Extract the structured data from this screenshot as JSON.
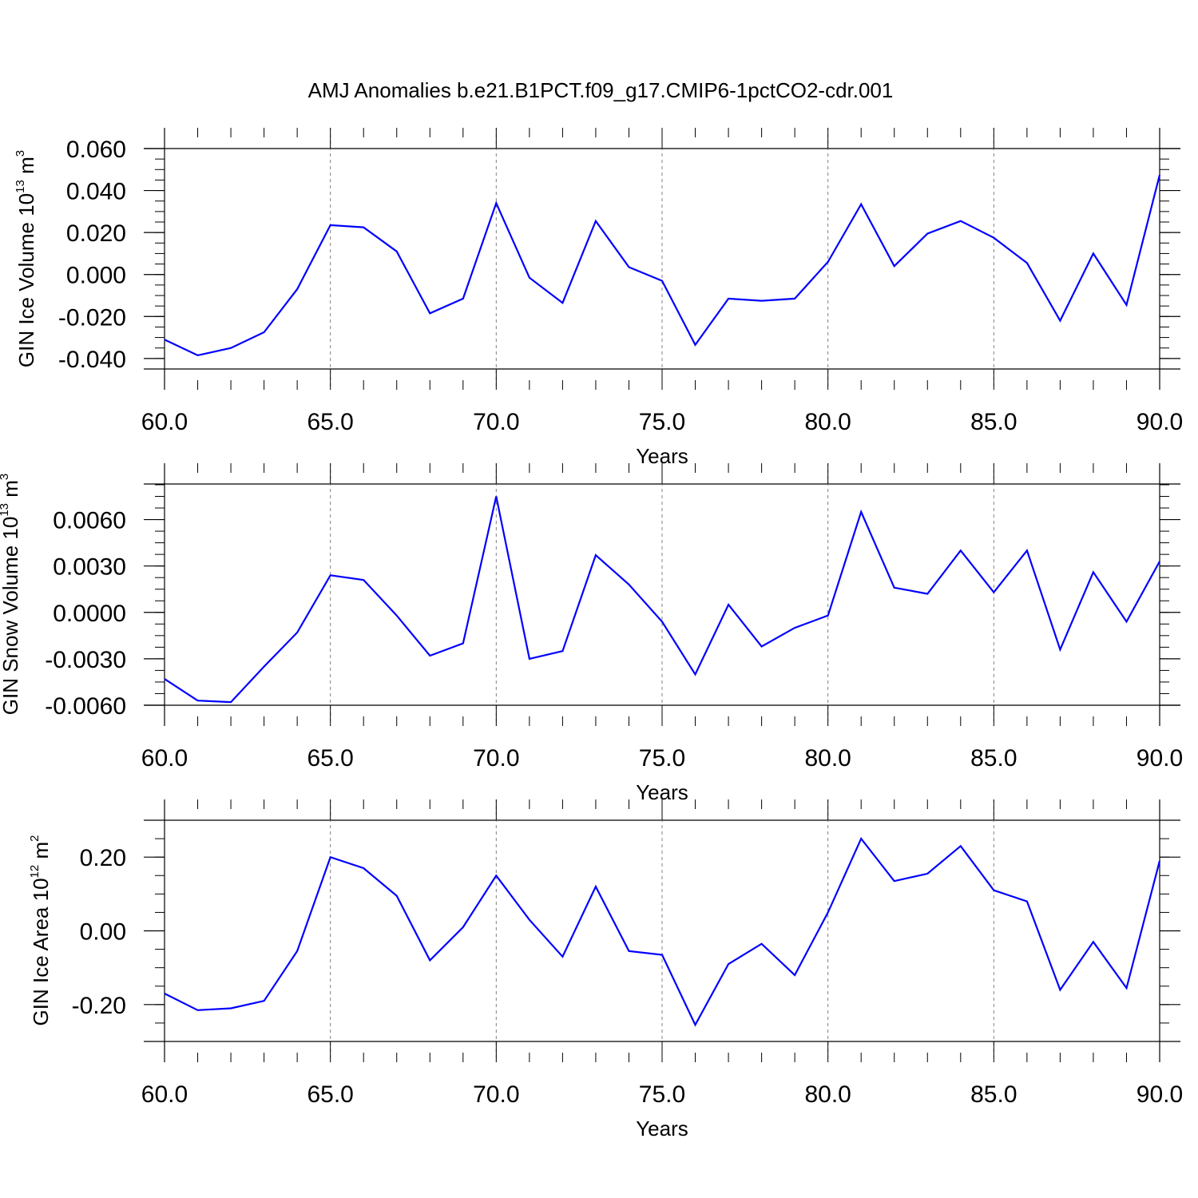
{
  "title": "AMJ Anomalies b.e21.B1PCT.f09_g17.CMIP6-1pctCO2-cdr.001",
  "colors": {
    "line": "#0000ff",
    "axis": "#000000",
    "grid": "#808080"
  },
  "chart_data": [
    {
      "type": "line",
      "xlabel": "Years",
      "ylabel": {
        "text": "GIN Ice Volume 10",
        "sup": "13",
        "unit": " m",
        "unit_sup": "3"
      },
      "xlim": [
        60,
        90
      ],
      "ylim": [
        -0.04,
        0.06
      ],
      "xticks": [
        "60.0",
        "65.0",
        "70.0",
        "75.0",
        "80.0",
        "85.0",
        "90.0"
      ],
      "yticks": [
        "-0.040",
        "-0.020",
        "0.000",
        "0.020",
        "0.040",
        "0.060"
      ],
      "x": [
        60,
        61,
        62,
        63,
        64,
        65,
        66,
        67,
        68,
        69,
        70,
        71,
        72,
        73,
        74,
        75,
        76,
        77,
        78,
        79,
        80,
        81,
        82,
        83,
        84,
        85,
        86,
        87,
        88,
        89,
        90
      ],
      "values": [
        -0.031,
        -0.0385,
        -0.035,
        -0.0275,
        -0.007,
        0.0235,
        0.0225,
        0.011,
        -0.0185,
        -0.0115,
        0.034,
        -0.0015,
        -0.0135,
        0.0255,
        0.0035,
        -0.003,
        -0.0335,
        -0.0115,
        -0.0125,
        -0.0115,
        0.006,
        0.0335,
        0.004,
        0.0195,
        0.0255,
        0.0175,
        0.0055,
        -0.022,
        0.01,
        -0.0145,
        0.0475
      ]
    },
    {
      "type": "line",
      "xlabel": "Years",
      "ylabel": {
        "text": "GIN Snow Volume 10",
        "sup": "13",
        "unit": " m",
        "unit_sup": "3"
      },
      "xlim": [
        60,
        90
      ],
      "ylim": [
        -0.006,
        0.008
      ],
      "xticks": [
        "60.0",
        "65.0",
        "70.0",
        "75.0",
        "80.0",
        "85.0",
        "90.0"
      ],
      "yticks": [
        "-0.0060",
        "-0.0030",
        "0.0000",
        "0.0030",
        "0.0060"
      ],
      "x": [
        60,
        61,
        62,
        63,
        64,
        65,
        66,
        67,
        68,
        69,
        70,
        71,
        72,
        73,
        74,
        75,
        76,
        77,
        78,
        79,
        80,
        81,
        82,
        83,
        84,
        85,
        86,
        87,
        88,
        89,
        90
      ],
      "values": [
        -0.0043,
        -0.0057,
        -0.0058,
        -0.0035,
        -0.0013,
        0.0024,
        0.0021,
        -0.0002,
        -0.0028,
        -0.002,
        0.0075,
        -0.003,
        -0.0025,
        0.0037,
        0.0018,
        -0.0006,
        -0.004,
        0.0005,
        -0.0022,
        -0.001,
        -0.0002,
        0.0065,
        0.0016,
        0.0012,
        0.004,
        0.0013,
        0.004,
        -0.0024,
        0.0026,
        -0.0006,
        0.0033
      ]
    },
    {
      "type": "line",
      "xlabel": "Years",
      "ylabel": {
        "text": "GIN Ice Area 10",
        "sup": "12",
        "unit": " m",
        "unit_sup": "2"
      },
      "xlim": [
        60,
        90
      ],
      "ylim": [
        -0.3,
        0.3
      ],
      "xticks": [
        "60.0",
        "65.0",
        "70.0",
        "75.0",
        "80.0",
        "85.0",
        "90.0"
      ],
      "yticks": [
        "-0.20",
        "0.00",
        "0.20"
      ],
      "x": [
        60,
        61,
        62,
        63,
        64,
        65,
        66,
        67,
        68,
        69,
        70,
        71,
        72,
        73,
        74,
        75,
        76,
        77,
        78,
        79,
        80,
        81,
        82,
        83,
        84,
        85,
        86,
        87,
        88,
        89,
        90
      ],
      "values": [
        -0.17,
        -0.215,
        -0.21,
        -0.19,
        -0.055,
        0.2,
        0.17,
        0.095,
        -0.08,
        0.01,
        0.15,
        0.03,
        -0.07,
        0.12,
        -0.055,
        -0.065,
        -0.255,
        -0.09,
        -0.035,
        -0.12,
        0.05,
        0.25,
        0.135,
        0.155,
        0.23,
        0.11,
        0.08,
        -0.16,
        -0.03,
        -0.155,
        0.19
      ]
    }
  ]
}
